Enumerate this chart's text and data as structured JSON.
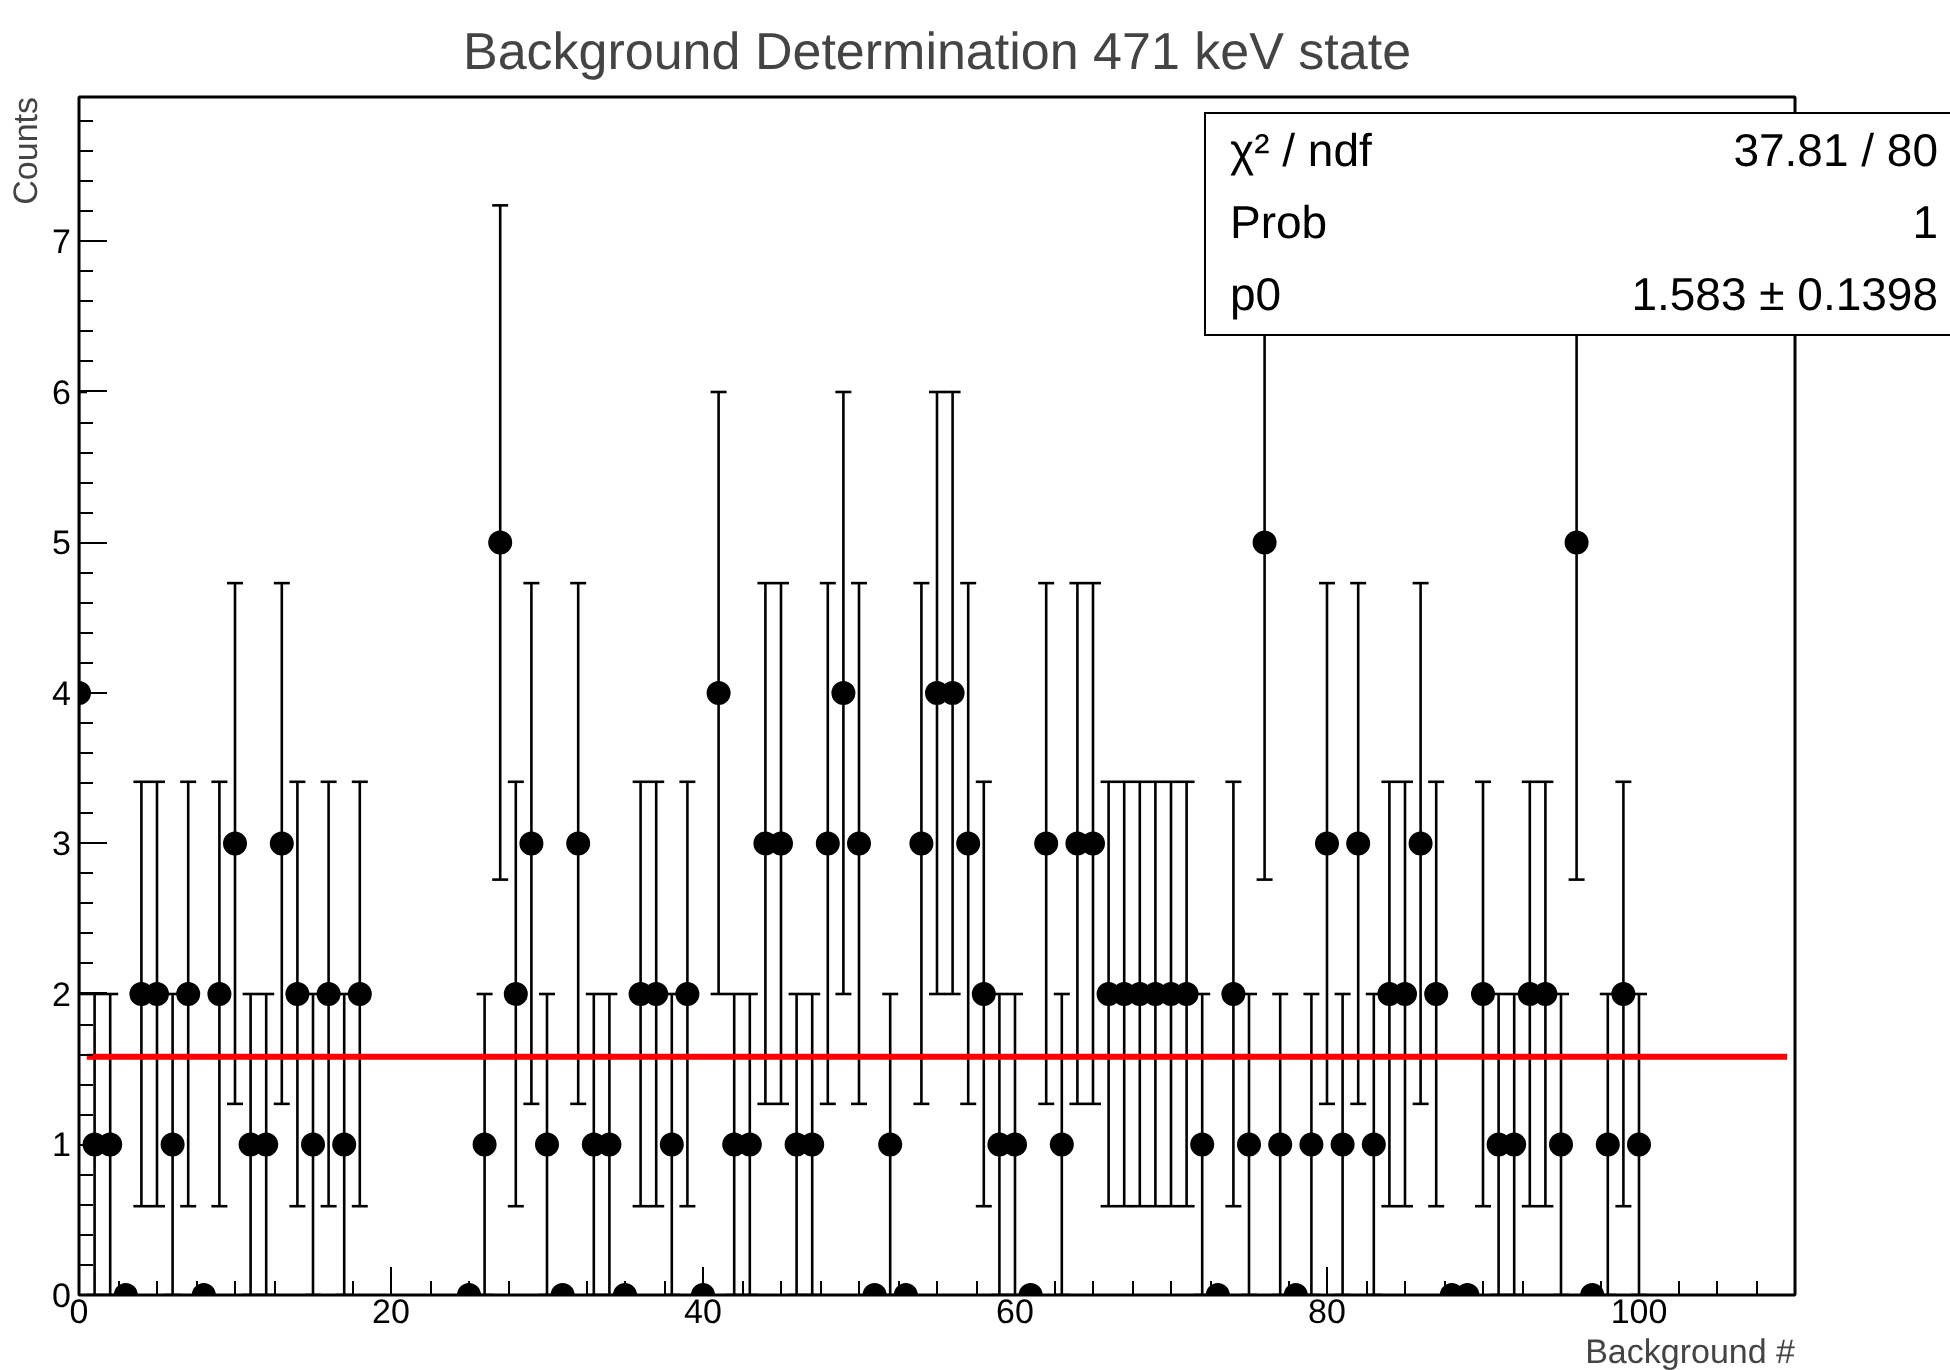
{
  "chart_data": {
    "type": "scatter",
    "title": "Background Determination 471 keV state",
    "xlabel": "Background #",
    "ylabel": "Counts",
    "xlim": [
      0,
      110
    ],
    "ylim": [
      0,
      7.96
    ],
    "xticks": [
      0,
      20,
      40,
      60,
      80,
      100
    ],
    "yticks": [
      0,
      1,
      2,
      3,
      4,
      5,
      6,
      7
    ],
    "grid": false,
    "annotations": [
      "χ² / ndf",
      "37.81 / 80",
      "Prob",
      "1",
      "p0",
      "1.583 ± 0.1398"
    ],
    "series": [
      {
        "color": "#000000",
        "marker": "circle",
        "x": [
          0,
          1,
          2,
          3,
          4,
          5,
          6,
          7,
          8,
          9,
          10,
          11,
          12,
          13,
          14,
          15,
          16,
          17,
          18,
          25,
          26,
          27,
          28,
          29,
          30,
          31,
          32,
          33,
          34,
          35,
          36,
          37,
          38,
          39,
          40,
          41,
          42,
          43,
          44,
          45,
          46,
          47,
          48,
          49,
          50,
          51,
          52,
          53,
          54,
          55,
          56,
          57,
          58,
          59,
          60,
          61,
          62,
          63,
          64,
          65,
          66,
          67,
          68,
          69,
          70,
          71,
          72,
          73,
          74,
          75,
          76,
          77,
          78,
          79,
          80,
          81,
          82,
          83,
          84,
          85,
          86,
          87,
          88,
          89,
          90,
          91,
          92,
          93,
          94,
          95,
          96,
          97,
          98,
          99,
          100
        ],
        "values": [
          4,
          1,
          1,
          0,
          2,
          2,
          1,
          2,
          0,
          2,
          3,
          1,
          1,
          3,
          2,
          1,
          2,
          1,
          2,
          0,
          1,
          5,
          2,
          3,
          1,
          0,
          3,
          1,
          1,
          0,
          2,
          2,
          1,
          2,
          0,
          4,
          1,
          1,
          3,
          3,
          1,
          1,
          3,
          4,
          3,
          0,
          1,
          0,
          3,
          4,
          4,
          3,
          2,
          1,
          1,
          0,
          3,
          1,
          3,
          3,
          2,
          2,
          2,
          2,
          2,
          2,
          1,
          0,
          2,
          1,
          5,
          1,
          0,
          1,
          3,
          1,
          3,
          1,
          2,
          2,
          3,
          2,
          0,
          0,
          2,
          1,
          1,
          2,
          2,
          1,
          5,
          0,
          1,
          2,
          1
        ],
        "errors": [
          2,
          1,
          1,
          null,
          1.41,
          1.41,
          1,
          1.41,
          null,
          1.41,
          1.73,
          1,
          1,
          1.73,
          1.41,
          1,
          1.41,
          1,
          1.41,
          null,
          1,
          2.24,
          1.41,
          1.73,
          1,
          null,
          1.73,
          1,
          1,
          null,
          1.41,
          1.41,
          1,
          1.41,
          null,
          2,
          1,
          1,
          1.73,
          1.73,
          1,
          1,
          1.73,
          2,
          1.73,
          null,
          1,
          null,
          1.73,
          2,
          2,
          1.73,
          1.41,
          1,
          1,
          null,
          1.73,
          1,
          1.73,
          1.73,
          1.41,
          1.41,
          1.41,
          1.41,
          1.41,
          1.41,
          1,
          null,
          1.41,
          1,
          2.24,
          1,
          null,
          1,
          1.73,
          1,
          1.73,
          1,
          1.41,
          1.41,
          1.73,
          1.41,
          null,
          null,
          1.41,
          1,
          1,
          1.41,
          1.41,
          1,
          2.24,
          null,
          1,
          1.41,
          1
        ]
      },
      {
        "type": "line",
        "color": "#ff0000",
        "x": [
          0.5,
          109.5
        ],
        "values": [
          1.583,
          1.583
        ]
      }
    ]
  }
}
